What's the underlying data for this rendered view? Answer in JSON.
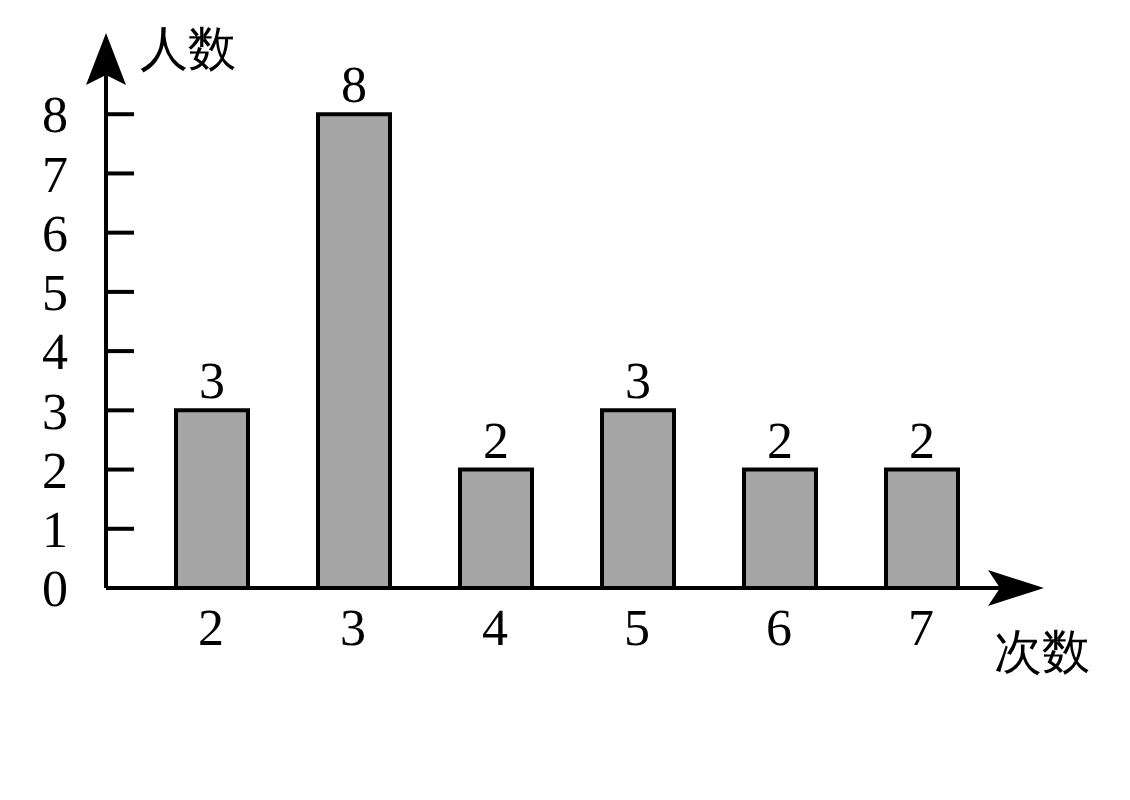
{
  "chart_data": {
    "type": "bar",
    "xlabel": "次数",
    "ylabel": "人数",
    "categories": [
      "2",
      "3",
      "4",
      "5",
      "6",
      "7"
    ],
    "values": [
      3,
      8,
      2,
      3,
      2,
      2
    ],
    "color": "#a6a6a6",
    "ylim": [
      0,
      9
    ],
    "yticks": [
      0,
      1,
      2,
      3,
      4,
      5,
      6,
      7,
      8
    ],
    "data_labels": true
  }
}
